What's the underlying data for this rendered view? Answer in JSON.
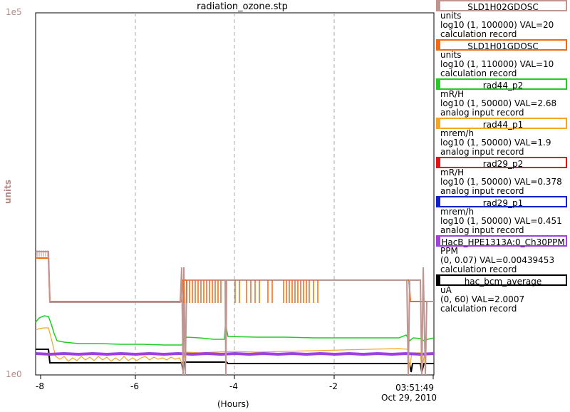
{
  "plot": {
    "title": "radiation_ozone.stp",
    "y_axis_label": "units",
    "y_tick_top": "1e5",
    "y_tick_bottom": "1e0",
    "x_ticks": [
      "-8",
      "-6",
      "-4",
      "-2"
    ],
    "x_label": "(Hours)",
    "time": "03:51:49",
    "date": "Oct 29, 2010"
  },
  "legend": [
    {
      "name": "SLD1H02GDOSC",
      "units": "units",
      "range": "log10 (1, 100000) VAL=20",
      "type": "calculation record",
      "color": "#c09490"
    },
    {
      "name": "SLD1H01GDOSC",
      "units": "units",
      "range": "log10 (1, 110000) VAL=10",
      "type": "calculation record",
      "color": "#f06a10"
    },
    {
      "name": "rad44_p2",
      "units": "mR/H",
      "range": "log10 (1, 50000) VAL=2.68",
      "type": "analog input record",
      "color": "#22cc22"
    },
    {
      "name": "rad44_p1",
      "units": "mrem/h",
      "range": "log10 (1, 50000) VAL=1.9",
      "type": "analog input record",
      "color": "#f5a623"
    },
    {
      "name": "rad29_p2",
      "units": "mR/H",
      "range": "log10 (1, 50000) VAL=0.378",
      "type": "analog input record",
      "color": "#e81010"
    },
    {
      "name": "rad29_p1",
      "units": "mrem/h",
      "range": "log10 (1, 50000) VAL=0.451",
      "type": "analog input record",
      "color": "#1020d0"
    },
    {
      "name": "HacB_HPE1313A:0_Ch30PPM",
      "units": "PPM",
      "range": "(0, 0.07) VAL=0.00439453",
      "type": "calculation record",
      "color": "#a040e0"
    },
    {
      "name": "hac_bcm_average",
      "units": "uA",
      "range": "(0, 60) VAL=2.0007",
      "type": "calculation record",
      "color": "#000000"
    }
  ]
}
